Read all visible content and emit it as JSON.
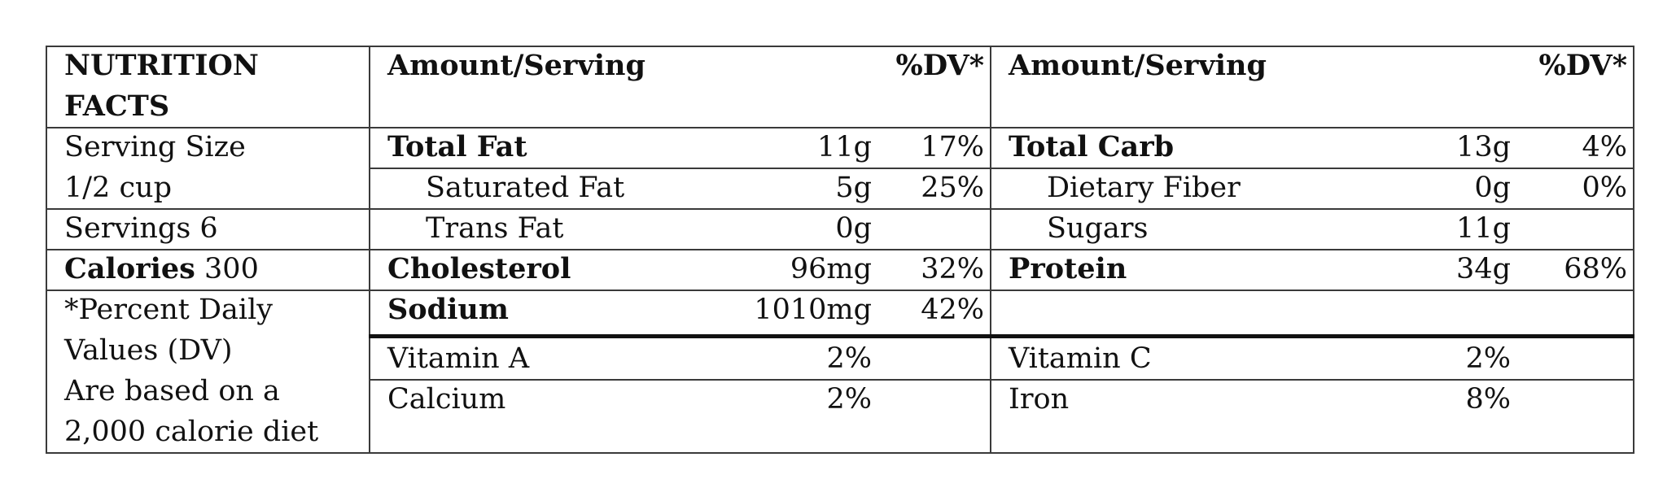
{
  "header": {
    "title_line1": "NUTRITION",
    "title_line2": "FACTS",
    "amount_label": "Amount/Serving",
    "dv_label": "%DV*"
  },
  "serving": {
    "size_label": "Serving Size",
    "size_value": "1/2 cup",
    "servings": "Servings 6",
    "calories_label": "Calories",
    "calories_value": "300",
    "footnote": [
      "*Percent Daily",
      "Values (DV)",
      "Are based on a",
      "2,000 calorie diet"
    ]
  },
  "left_rows": [
    {
      "name": "Total Fat",
      "amount": "11g",
      "dv": "17%"
    },
    {
      "name": "Saturated Fat",
      "amount": "5g",
      "dv": "25%"
    },
    {
      "name": "Trans Fat",
      "amount": "0g",
      "dv": ""
    },
    {
      "name": "Cholesterol",
      "amount": "96mg",
      "dv": "32%"
    },
    {
      "name": "Sodium",
      "amount": "1010mg",
      "dv": "42%"
    }
  ],
  "right_rows": [
    {
      "name": "Total Carb",
      "amount": "13g",
      "dv": "4%"
    },
    {
      "name": "Dietary Fiber",
      "amount": "0g",
      "dv": "0%"
    },
    {
      "name": "Sugars",
      "amount": "11g",
      "dv": ""
    },
    {
      "name": "Protein",
      "amount": "34g",
      "dv": "68%"
    }
  ],
  "vitamins": {
    "left": [
      {
        "name": "Vitamin A",
        "dv": "2%"
      },
      {
        "name": "Calcium",
        "dv": "2%"
      }
    ],
    "right": [
      {
        "name": "Vitamin C",
        "dv": "2%"
      },
      {
        "name": "Iron",
        "dv": "8%"
      }
    ]
  }
}
